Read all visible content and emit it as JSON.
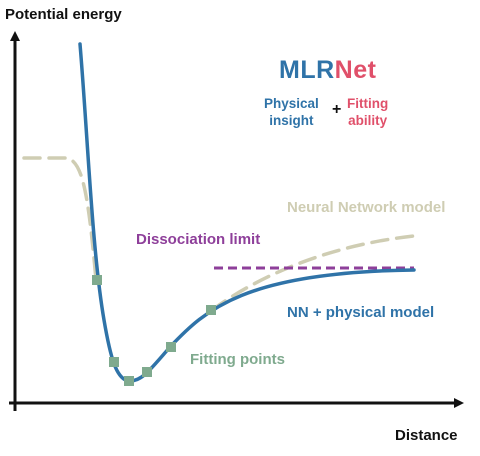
{
  "axes": {
    "y_label": "Potential energy",
    "x_label": "Distance"
  },
  "brand": {
    "part1": "MLR",
    "part2": "Net",
    "color1": "#2f73a8",
    "color2": "#e0506a"
  },
  "tagline": {
    "left_line1": "Physical",
    "left_line2": "insight",
    "plus": "+",
    "right_line1": "Fitting",
    "right_line2": "ability"
  },
  "labels": {
    "neural_network_model": "Neural Network model",
    "dissociation_limit": "Dissociation limit",
    "nn_physical_model": "NN + physical model",
    "fitting_points": "Fitting points"
  },
  "colors": {
    "axis": "#111111",
    "physical_curve": "#2f73a8",
    "nn_curve": "#cfcdb3",
    "dissociation": "#8e3f9a",
    "points": "#7faa8e",
    "fitting_label": "#7faa8e"
  }
}
